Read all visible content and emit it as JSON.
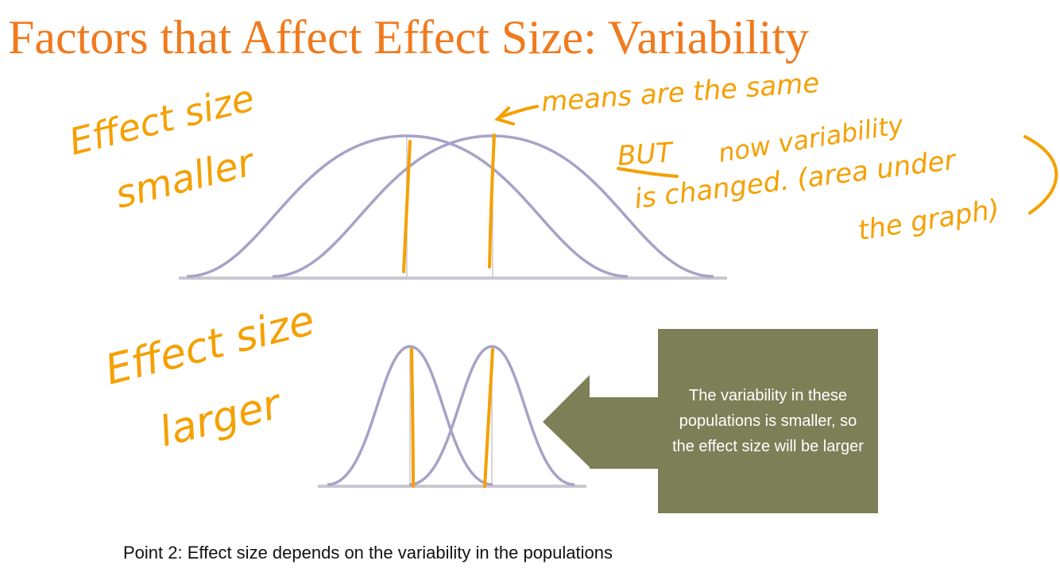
{
  "slide": {
    "title": "Factors that Affect Effect Size: Variability",
    "callout": "The variability in these populations is smaller, so the effect size will be larger",
    "footnote": "Point 2: Effect size depends on the variability in the populations"
  },
  "annotations": {
    "top_label_line1": "Effect size",
    "top_label_line2": "smaller",
    "means_note": "means are the same",
    "but": "BUT",
    "variability_line1": "now variability",
    "variability_line2": "is changed. (area under",
    "variability_line3": "the graph)",
    "bottom_label_line1": "Effect size",
    "bottom_label_line2": "larger"
  },
  "colors": {
    "title": "#f07a1e",
    "ink": "#f5a000",
    "curve": "#a8a2c8",
    "callout_fill": "#7d8057"
  }
}
